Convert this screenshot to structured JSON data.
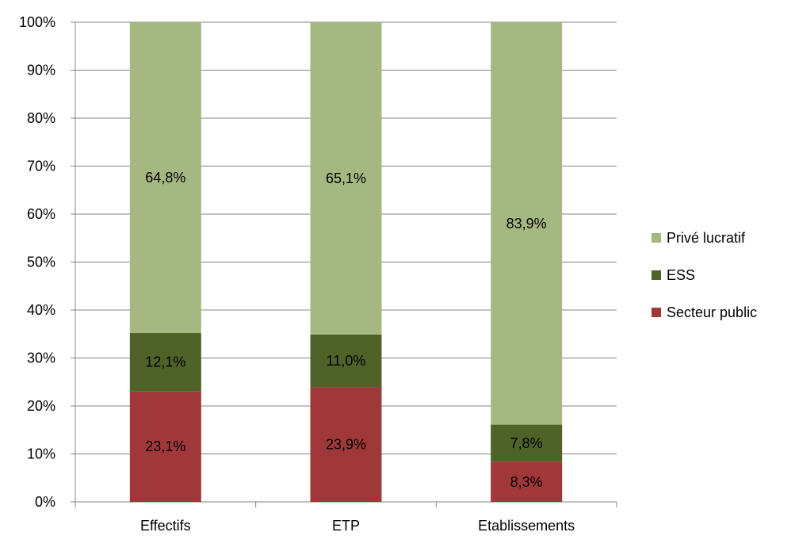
{
  "chart_data": {
    "type": "bar",
    "stacked": true,
    "categories": [
      "Effectifs",
      "ETP",
      "Etablissements"
    ],
    "series": [
      {
        "name": "Secteur public",
        "values": [
          23.1,
          23.9,
          8.3
        ],
        "labels": [
          "23,1%",
          "23,9%",
          "8,3%"
        ],
        "color": "#a0383a"
      },
      {
        "name": "ESS",
        "values": [
          12.1,
          11.0,
          7.8
        ],
        "labels": [
          "12,1%",
          "11,0%",
          "7,8%"
        ],
        "color": "#4f6228"
      },
      {
        "name": "Privé lucratif",
        "values": [
          64.8,
          65.1,
          83.9
        ],
        "labels": [
          "64,8%",
          "65,1%",
          "83,9%"
        ],
        "color": "#a6b882"
      }
    ],
    "legend_order": [
      "Privé lucratif",
      "ESS",
      "Secteur public"
    ],
    "y_ticks": [
      "0%",
      "10%",
      "20%",
      "30%",
      "40%",
      "50%",
      "60%",
      "70%",
      "80%",
      "90%",
      "100%"
    ],
    "ylim": [
      0,
      100
    ],
    "grid": true,
    "legend_position": "right",
    "title": "",
    "xlabel": "",
    "ylabel": ""
  }
}
